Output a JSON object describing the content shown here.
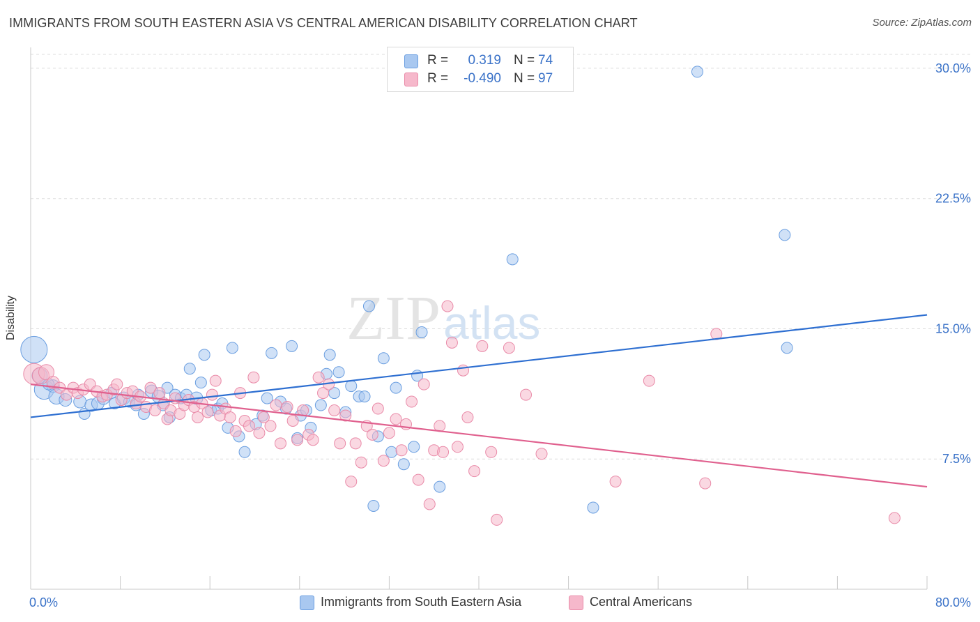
{
  "header": {
    "title": "IMMIGRANTS FROM SOUTH EASTERN ASIA VS CENTRAL AMERICAN DISABILITY CORRELATION CHART",
    "source": "Source: ZipAtlas.com"
  },
  "watermark": {
    "part1": "ZIP",
    "part2": "atlas"
  },
  "stats_box": {
    "rows": [
      {
        "r_label": "R =",
        "r_value": "0.319",
        "n_label": "N =",
        "n_value": "74",
        "color": "#a9c8f0"
      },
      {
        "r_label": "R =",
        "r_value": "-0.490",
        "n_label": "N =",
        "n_value": "97",
        "color": "#f6b8cb"
      }
    ]
  },
  "legend": {
    "items": [
      {
        "label": "Immigrants from South Eastern Asia",
        "color": "#a9c8f0"
      },
      {
        "label": "Central Americans",
        "color": "#f6b8cb"
      }
    ]
  },
  "chart_data": {
    "type": "scatter",
    "ylabel": "Disability",
    "xlim": [
      0,
      80
    ],
    "ylim": [
      0,
      30.8
    ],
    "x_ticks": [
      0,
      8,
      16,
      24,
      32,
      40,
      48,
      56,
      64,
      72,
      80
    ],
    "x_tick_labels": [
      {
        "x": 0,
        "label": "0.0%"
      },
      {
        "x": 80,
        "label": "80.0%"
      }
    ],
    "y_ticks": [
      {
        "y": 7.5,
        "label": "7.5%"
      },
      {
        "y": 15.0,
        "label": "15.0%"
      },
      {
        "y": 22.5,
        "label": "22.5%"
      },
      {
        "y": 30.0,
        "label": "30.0%"
      }
    ],
    "grid": true,
    "series": [
      {
        "name": "Immigrants from South Eastern Asia",
        "color": "#6a9ee0",
        "fill": "#a9c8f0",
        "trend": {
          "x": [
            0,
            80
          ],
          "y": [
            9.9,
            15.8
          ],
          "color": "#2e6fd1"
        },
        "points": [
          [
            0.3,
            13.8,
            19
          ],
          [
            1.2,
            11.5,
            14
          ],
          [
            2.0,
            11.7,
            9
          ],
          [
            2.3,
            11.1,
            11
          ],
          [
            3.1,
            10.9,
            9
          ],
          [
            4.4,
            10.8,
            9
          ],
          [
            4.8,
            10.1,
            8
          ],
          [
            5.4,
            10.6,
            9
          ],
          [
            6.0,
            10.7,
            9
          ],
          [
            6.5,
            11.0,
            9
          ],
          [
            7.2,
            11.3,
            8
          ],
          [
            7.5,
            10.7,
            8
          ],
          [
            8.3,
            11.0,
            9
          ],
          [
            8.8,
            10.8,
            8
          ],
          [
            9.4,
            10.6,
            8
          ],
          [
            9.6,
            11.2,
            8
          ],
          [
            10.1,
            10.1,
            8
          ],
          [
            10.8,
            11.4,
            9
          ],
          [
            11.4,
            11.1,
            9
          ],
          [
            11.8,
            10.6,
            8
          ],
          [
            12.2,
            11.6,
            8
          ],
          [
            12.4,
            9.9,
            8
          ],
          [
            12.9,
            11.2,
            8
          ],
          [
            13.4,
            11.0,
            8
          ],
          [
            13.9,
            11.2,
            8
          ],
          [
            14.2,
            12.7,
            8
          ],
          [
            14.8,
            11.0,
            9
          ],
          [
            15.2,
            11.9,
            8
          ],
          [
            15.5,
            13.5,
            8
          ],
          [
            16.1,
            10.3,
            8
          ],
          [
            16.7,
            10.4,
            8
          ],
          [
            17.1,
            10.7,
            8
          ],
          [
            17.6,
            9.3,
            8
          ],
          [
            18.0,
            13.9,
            8
          ],
          [
            18.6,
            8.8,
            8
          ],
          [
            19.1,
            7.9,
            8
          ],
          [
            20.1,
            9.5,
            8
          ],
          [
            20.7,
            10.0,
            8
          ],
          [
            21.1,
            11.0,
            8
          ],
          [
            21.5,
            13.6,
            8
          ],
          [
            22.3,
            10.8,
            8
          ],
          [
            22.8,
            10.4,
            8
          ],
          [
            23.3,
            14.0,
            8
          ],
          [
            23.8,
            8.7,
            8
          ],
          [
            24.1,
            10.0,
            8
          ],
          [
            24.6,
            10.3,
            8
          ],
          [
            25.0,
            9.3,
            8
          ],
          [
            25.9,
            10.6,
            8
          ],
          [
            26.4,
            12.4,
            8
          ],
          [
            26.7,
            13.5,
            8
          ],
          [
            27.1,
            11.3,
            8
          ],
          [
            27.5,
            12.5,
            8
          ],
          [
            28.1,
            10.2,
            8
          ],
          [
            28.6,
            11.7,
            8
          ],
          [
            29.3,
            11.1,
            8
          ],
          [
            29.8,
            11.1,
            8
          ],
          [
            30.2,
            16.3,
            8
          ],
          [
            30.6,
            4.8,
            8
          ],
          [
            31.0,
            8.8,
            8
          ],
          [
            31.5,
            13.3,
            8
          ],
          [
            32.2,
            7.9,
            8
          ],
          [
            32.6,
            11.6,
            8
          ],
          [
            33.3,
            7.2,
            8
          ],
          [
            34.2,
            8.2,
            8
          ],
          [
            34.5,
            12.3,
            8
          ],
          [
            34.9,
            14.8,
            8
          ],
          [
            36.5,
            5.9,
            8
          ],
          [
            43.0,
            19.0,
            8
          ],
          [
            50.2,
            4.7,
            8
          ],
          [
            59.5,
            29.8,
            8
          ],
          [
            67.5,
            13.9,
            8
          ],
          [
            67.3,
            20.4,
            8
          ],
          [
            0.8,
            12.3,
            11
          ],
          [
            1.6,
            11.8,
            8
          ]
        ]
      },
      {
        "name": "Central Americans",
        "color": "#e98aa8",
        "fill": "#f6b8cb",
        "trend": {
          "x": [
            0,
            80
          ],
          "y": [
            11.8,
            5.9
          ],
          "color": "#e0608e"
        },
        "points": [
          [
            0.3,
            12.4,
            15
          ],
          [
            0.9,
            12.3,
            12
          ],
          [
            1.4,
            12.5,
            11
          ],
          [
            2.0,
            11.9,
            9
          ],
          [
            2.6,
            11.6,
            8
          ],
          [
            3.2,
            11.2,
            8
          ],
          [
            3.8,
            11.6,
            8
          ],
          [
            4.2,
            11.3,
            8
          ],
          [
            4.7,
            11.5,
            8
          ],
          [
            5.3,
            11.8,
            8
          ],
          [
            5.9,
            11.4,
            8
          ],
          [
            6.4,
            11.1,
            8
          ],
          [
            6.8,
            11.2,
            8
          ],
          [
            7.4,
            11.5,
            8
          ],
          [
            7.7,
            11.8,
            8
          ],
          [
            8.1,
            10.9,
            8
          ],
          [
            8.6,
            11.3,
            8
          ],
          [
            9.1,
            11.4,
            8
          ],
          [
            9.4,
            10.7,
            8
          ],
          [
            9.8,
            11.1,
            8
          ],
          [
            10.3,
            10.5,
            8
          ],
          [
            10.7,
            11.6,
            8
          ],
          [
            11.1,
            10.3,
            8
          ],
          [
            11.5,
            11.3,
            8
          ],
          [
            11.9,
            10.7,
            8
          ],
          [
            12.2,
            9.8,
            8
          ],
          [
            12.5,
            10.3,
            8
          ],
          [
            12.9,
            11.0,
            8
          ],
          [
            13.3,
            10.1,
            8
          ],
          [
            13.7,
            10.6,
            8
          ],
          [
            14.1,
            10.9,
            8
          ],
          [
            14.6,
            10.5,
            8
          ],
          [
            14.9,
            9.9,
            8
          ],
          [
            15.3,
            10.7,
            8
          ],
          [
            15.8,
            10.2,
            8
          ],
          [
            16.2,
            11.2,
            8
          ],
          [
            16.5,
            12.0,
            8
          ],
          [
            16.9,
            10.0,
            8
          ],
          [
            17.4,
            10.4,
            8
          ],
          [
            17.8,
            9.9,
            8
          ],
          [
            18.3,
            9.1,
            8
          ],
          [
            18.7,
            11.3,
            8
          ],
          [
            19.1,
            9.7,
            8
          ],
          [
            19.5,
            9.4,
            8
          ],
          [
            19.9,
            12.2,
            8
          ],
          [
            20.4,
            9.0,
            8
          ],
          [
            20.8,
            9.9,
            8
          ],
          [
            21.4,
            9.4,
            8
          ],
          [
            21.9,
            10.6,
            8
          ],
          [
            22.3,
            8.4,
            8
          ],
          [
            22.9,
            10.5,
            8
          ],
          [
            23.4,
            9.7,
            8
          ],
          [
            23.8,
            8.6,
            8
          ],
          [
            24.3,
            10.3,
            8
          ],
          [
            24.8,
            8.9,
            8
          ],
          [
            25.2,
            8.6,
            8
          ],
          [
            25.7,
            12.2,
            8
          ],
          [
            26.1,
            11.3,
            8
          ],
          [
            26.6,
            11.8,
            8
          ],
          [
            27.1,
            10.3,
            8
          ],
          [
            27.6,
            8.4,
            8
          ],
          [
            28.1,
            10.0,
            8
          ],
          [
            28.6,
            6.2,
            8
          ],
          [
            29.0,
            8.4,
            8
          ],
          [
            29.5,
            7.3,
            8
          ],
          [
            30.0,
            9.4,
            8
          ],
          [
            30.5,
            8.9,
            8
          ],
          [
            31.0,
            10.4,
            8
          ],
          [
            31.5,
            7.4,
            8
          ],
          [
            32.0,
            9.0,
            8
          ],
          [
            32.6,
            9.8,
            8
          ],
          [
            33.1,
            8.0,
            8
          ],
          [
            33.5,
            9.5,
            8
          ],
          [
            34.0,
            10.8,
            8
          ],
          [
            34.6,
            6.3,
            8
          ],
          [
            35.1,
            11.8,
            8
          ],
          [
            35.6,
            4.9,
            8
          ],
          [
            36.0,
            8.0,
            8
          ],
          [
            36.5,
            9.4,
            8
          ],
          [
            36.8,
            7.9,
            8
          ],
          [
            37.2,
            16.3,
            8
          ],
          [
            37.6,
            14.2,
            8
          ],
          [
            38.1,
            8.2,
            8
          ],
          [
            38.6,
            12.6,
            8
          ],
          [
            39.0,
            9.9,
            8
          ],
          [
            39.6,
            6.8,
            8
          ],
          [
            40.3,
            14.0,
            8
          ],
          [
            41.1,
            7.9,
            8
          ],
          [
            41.6,
            4.0,
            8
          ],
          [
            42.7,
            13.9,
            8
          ],
          [
            44.2,
            11.2,
            8
          ],
          [
            45.6,
            7.8,
            8
          ],
          [
            52.2,
            6.2,
            8
          ],
          [
            55.2,
            12.0,
            8
          ],
          [
            60.2,
            6.1,
            8
          ],
          [
            61.2,
            14.7,
            8
          ],
          [
            77.1,
            4.1,
            8
          ]
        ]
      }
    ]
  }
}
